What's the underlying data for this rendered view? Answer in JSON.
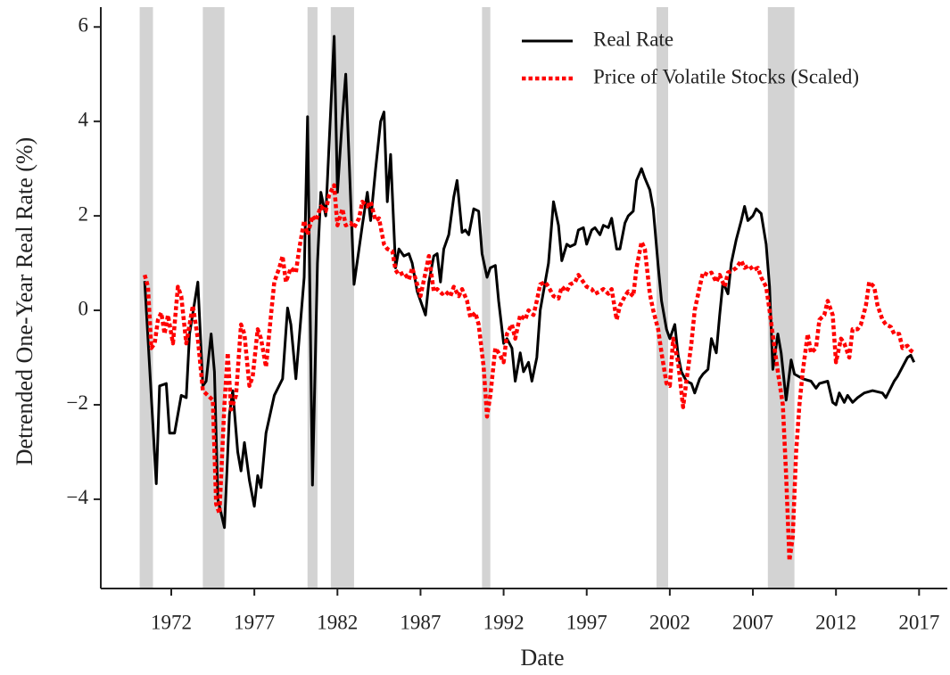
{
  "chart_data": {
    "type": "line",
    "x_label": "Date",
    "y_label": "Detrended One-Year Real Rate (%)",
    "xlim": [
      1967.76,
      2018.7
    ],
    "ylim": [
      -5.89,
      6.42
    ],
    "xticks": [
      1972,
      1977,
      1982,
      1987,
      1992,
      1997,
      2002,
      2007,
      2012,
      2017
    ],
    "yticks": [
      {
        "value": -4,
        "label": "−4"
      },
      {
        "value": -2,
        "label": "−2"
      },
      0,
      2,
      4,
      6
    ],
    "grid": false,
    "legend": "upper right",
    "shaded_periods": [
      [
        1970.1,
        1970.9
      ],
      [
        1973.9,
        1975.2
      ],
      [
        1980.2,
        1980.8
      ],
      [
        1981.6,
        1983.0
      ],
      [
        1990.7,
        1991.2
      ],
      [
        2001.2,
        2001.9
      ],
      [
        2007.9,
        2009.5
      ]
    ],
    "shade_color": "#d3d3d3",
    "series": [
      {
        "name": "Real Rate",
        "color": "#000000",
        "style": "solid",
        "x": [
          1970.4,
          1971.1,
          1971.3,
          1971.7,
          1971.9,
          1972.2,
          1972.6,
          1972.9,
          1973.1,
          1973.6,
          1973.9,
          1974.1,
          1974.4,
          1974.6,
          1974.8,
          1975.2,
          1975.5,
          1975.7,
          1976.0,
          1976.2,
          1976.4,
          1976.7,
          1977.0,
          1977.2,
          1977.4,
          1977.7,
          1978.2,
          1978.7,
          1979.0,
          1979.2,
          1979.5,
          1980.0,
          1980.2,
          1980.5,
          1980.8,
          1981.0,
          1981.3,
          1981.8,
          1982.0,
          1982.3,
          1982.5,
          1982.8,
          1983.0,
          1983.5,
          1983.8,
          1984.0,
          1984.3,
          1984.6,
          1984.8,
          1985.0,
          1985.2,
          1985.5,
          1985.7,
          1986.0,
          1986.3,
          1986.5,
          1986.8,
          1987.3,
          1987.5,
          1987.8,
          1988.0,
          1988.2,
          1988.4,
          1988.7,
          1989.0,
          1989.2,
          1989.5,
          1989.7,
          1989.9,
          1990.2,
          1990.5,
          1990.7,
          1991.0,
          1991.2,
          1991.5,
          1991.7,
          1992.0,
          1992.2,
          1992.5,
          1992.7,
          1993.0,
          1993.2,
          1993.5,
          1993.7,
          1994.0,
          1994.2,
          1994.7,
          1995.0,
          1995.3,
          1995.5,
          1995.8,
          1996.0,
          1996.3,
          1996.5,
          1996.8,
          1997.0,
          1997.3,
          1997.5,
          1997.8,
          1998.0,
          1998.3,
          1998.5,
          1998.8,
          1999.0,
          1999.3,
          1999.5,
          1999.8,
          2000.0,
          2000.3,
          2000.5,
          2000.8,
          2001.0,
          2001.3,
          2001.5,
          2001.8,
          2002.0,
          2002.3,
          2002.5,
          2002.7,
          2003.0,
          2003.3,
          2003.5,
          2003.8,
          2004.0,
          2004.3,
          2004.5,
          2004.8,
          2005.0,
          2005.2,
          2005.5,
          2005.7,
          2006.0,
          2006.3,
          2006.5,
          2006.7,
          2007.0,
          2007.2,
          2007.5,
          2007.8,
          2008.0,
          2008.2,
          2008.5,
          2008.7,
          2009.0,
          2009.3,
          2009.5,
          2010.0,
          2010.5,
          2010.8,
          2011.0,
          2011.5,
          2011.8,
          2012.0,
          2012.2,
          2012.5,
          2012.7,
          2013.0,
          2013.3,
          2013.7,
          2014.2,
          2014.8,
          2015.0,
          2015.5,
          2015.7,
          2016.3,
          2016.5,
          2016.7
        ],
        "values": [
          0.62,
          -3.67,
          -1.6,
          -1.55,
          -2.6,
          -2.6,
          -1.8,
          -1.85,
          -0.5,
          0.6,
          -1.6,
          -1.5,
          -0.5,
          -1.3,
          -4.0,
          -4.6,
          -2.2,
          -1.7,
          -3.0,
          -3.4,
          -2.8,
          -3.6,
          -4.15,
          -3.5,
          -3.75,
          -2.6,
          -1.8,
          -1.45,
          0.05,
          -0.3,
          -1.45,
          0.7,
          4.1,
          -3.7,
          1.0,
          2.5,
          2.0,
          5.8,
          2.5,
          4.1,
          5.0,
          2.3,
          0.55,
          1.8,
          2.5,
          1.9,
          3.0,
          4.0,
          4.2,
          2.3,
          3.3,
          0.9,
          1.3,
          1.15,
          1.2,
          1.0,
          0.4,
          -0.1,
          0.6,
          1.15,
          1.2,
          0.6,
          1.3,
          1.6,
          2.4,
          2.75,
          1.65,
          1.7,
          1.6,
          2.15,
          2.1,
          1.2,
          0.7,
          0.9,
          0.95,
          0.2,
          -0.7,
          -0.6,
          -0.8,
          -1.5,
          -0.9,
          -1.3,
          -1.1,
          -1.5,
          -1.0,
          0.0,
          1.0,
          2.3,
          1.8,
          1.05,
          1.4,
          1.35,
          1.4,
          1.7,
          1.75,
          1.4,
          1.7,
          1.75,
          1.6,
          1.8,
          1.75,
          1.95,
          1.3,
          1.3,
          1.85,
          2.0,
          2.1,
          2.75,
          3.0,
          2.8,
          2.55,
          2.15,
          0.95,
          0.2,
          -0.4,
          -0.6,
          -0.3,
          -0.95,
          -1.3,
          -1.5,
          -1.55,
          -1.75,
          -1.45,
          -1.35,
          -1.25,
          -0.6,
          -0.9,
          -0.1,
          0.6,
          0.35,
          1.0,
          1.5,
          1.9,
          2.2,
          1.9,
          2.0,
          2.15,
          2.05,
          1.4,
          0.5,
          -1.25,
          -0.5,
          -0.9,
          -1.9,
          -1.05,
          -1.35,
          -1.45,
          -1.5,
          -1.65,
          -1.55,
          -1.5,
          -1.95,
          -2.0,
          -1.75,
          -1.95,
          -1.8,
          -1.95,
          -1.85,
          -1.75,
          -1.7,
          -1.75,
          -1.85,
          -1.5,
          -1.4,
          -1.0,
          -0.95,
          -1.1
        ]
      },
      {
        "name": "Price of Volatile Stocks (Scaled)",
        "color": "#ff0000",
        "style": "dotted",
        "x": [
          1970.4,
          1970.6,
          1970.8,
          1971.0,
          1971.2,
          1971.4,
          1971.6,
          1971.8,
          1972.1,
          1972.4,
          1972.6,
          1972.9,
          1973.1,
          1973.3,
          1973.6,
          1973.9,
          1974.2,
          1974.5,
          1974.7,
          1974.9,
          1975.2,
          1975.4,
          1975.6,
          1975.9,
          1976.2,
          1976.4,
          1976.7,
          1976.9,
          1977.2,
          1977.4,
          1977.7,
          1978.0,
          1978.2,
          1978.5,
          1978.7,
          1978.9,
          1979.2,
          1979.5,
          1979.7,
          1980.0,
          1980.2,
          1980.5,
          1980.7,
          1981.0,
          1981.3,
          1981.5,
          1981.8,
          1982.0,
          1982.3,
          1982.5,
          1982.8,
          1983.0,
          1983.3,
          1983.5,
          1983.8,
          1984.0,
          1984.3,
          1984.5,
          1984.8,
          1985.0,
          1985.3,
          1985.5,
          1985.7,
          1986.0,
          1986.3,
          1986.5,
          1986.8,
          1987.0,
          1987.3,
          1987.5,
          1987.8,
          1988.0,
          1988.3,
          1988.5,
          1988.8,
          1989.0,
          1989.3,
          1989.5,
          1989.8,
          1990.0,
          1990.3,
          1990.5,
          1990.8,
          1991.0,
          1991.2,
          1991.5,
          1991.7,
          1992.0,
          1992.2,
          1992.5,
          1992.7,
          1993.0,
          1993.3,
          1993.5,
          1993.8,
          1994.0,
          1994.2,
          1994.5,
          1994.7,
          1995.0,
          1995.3,
          1995.5,
          1995.8,
          1996.0,
          1996.3,
          1996.5,
          1996.8,
          1997.0,
          1997.3,
          1997.5,
          1997.8,
          1998.0,
          1998.3,
          1998.5,
          1998.8,
          1999.0,
          1999.3,
          1999.5,
          1999.8,
          2000.0,
          2000.3,
          2000.5,
          2000.8,
          2001.0,
          2001.3,
          2001.5,
          2001.8,
          2002.0,
          2002.2,
          2002.5,
          2002.8,
          2003.0,
          2003.3,
          2003.5,
          2003.8,
          2004.0,
          2004.3,
          2004.5,
          2004.8,
          2005.0,
          2005.3,
          2005.5,
          2005.8,
          2006.0,
          2006.3,
          2006.5,
          2006.8,
          2007.0,
          2007.3,
          2007.5,
          2007.8,
          2008.0,
          2008.3,
          2008.5,
          2008.8,
          2009.0,
          2009.2,
          2009.4,
          2009.6,
          2009.8,
          2010.0,
          2010.3,
          2010.5,
          2010.8,
          2011.0,
          2011.3,
          2011.5,
          2011.8,
          2012.0,
          2012.3,
          2012.5,
          2012.8,
          2013.0,
          2013.3,
          2013.5,
          2013.8,
          2014.0,
          2014.3,
          2014.5,
          2014.8,
          2015.0,
          2015.3,
          2015.5,
          2015.8,
          2016.0,
          2016.3,
          2016.5,
          2016.7
        ],
        "values": [
          0.75,
          0.5,
          -0.8,
          -0.7,
          -0.2,
          -0.05,
          -0.5,
          -0.1,
          -0.7,
          0.5,
          0.3,
          -0.7,
          -0.3,
          0.1,
          -0.6,
          -1.7,
          -1.8,
          -1.9,
          -4.1,
          -4.3,
          -2.0,
          -0.9,
          -2.1,
          -1.8,
          -0.3,
          -0.5,
          -1.6,
          -1.4,
          -0.4,
          -0.6,
          -1.2,
          -0.1,
          0.6,
          0.9,
          1.15,
          0.6,
          0.9,
          0.8,
          1.3,
          1.9,
          1.6,
          2.0,
          1.9,
          2.2,
          2.1,
          2.45,
          2.65,
          1.8,
          2.15,
          1.8,
          1.85,
          1.75,
          1.95,
          2.3,
          2.2,
          2.3,
          1.9,
          1.95,
          1.4,
          1.3,
          1.25,
          0.85,
          0.75,
          0.8,
          0.65,
          0.9,
          0.55,
          0.3,
          0.8,
          1.15,
          0.4,
          0.45,
          0.35,
          0.4,
          0.3,
          0.5,
          0.3,
          0.45,
          0.2,
          -0.15,
          -0.05,
          -0.3,
          -1.2,
          -2.25,
          -1.8,
          -0.8,
          -0.9,
          -1.1,
          -0.5,
          -0.3,
          -0.6,
          -0.1,
          -0.2,
          0.0,
          -0.1,
          0.2,
          0.55,
          0.6,
          0.5,
          0.3,
          0.25,
          0.5,
          0.4,
          0.55,
          0.6,
          0.75,
          0.6,
          0.5,
          0.45,
          0.35,
          0.4,
          0.45,
          0.35,
          0.45,
          -0.2,
          0.1,
          0.3,
          0.4,
          0.3,
          0.9,
          1.45,
          1.3,
          0.35,
          0.0,
          -0.4,
          -0.9,
          -1.55,
          -1.6,
          -0.6,
          -1.1,
          -2.05,
          -1.5,
          -0.7,
          0.0,
          0.5,
          0.8,
          0.75,
          0.8,
          0.6,
          0.75,
          0.5,
          0.8,
          0.85,
          0.9,
          1.05,
          0.9,
          0.95,
          0.85,
          0.9,
          0.7,
          0.5,
          0.0,
          -0.8,
          -1.3,
          -2.0,
          -3.5,
          -5.3,
          -4.8,
          -3.0,
          -2.0,
          -1.3,
          -0.5,
          -0.9,
          -0.8,
          -0.2,
          -0.1,
          0.2,
          -0.1,
          -1.1,
          -0.6,
          -0.7,
          -1.0,
          -0.4,
          -0.4,
          -0.3,
          0.1,
          0.6,
          0.5,
          0.1,
          -0.2,
          -0.3,
          -0.35,
          -0.5,
          -0.5,
          -0.8,
          -0.75,
          -0.85,
          -0.9
        ]
      }
    ]
  }
}
